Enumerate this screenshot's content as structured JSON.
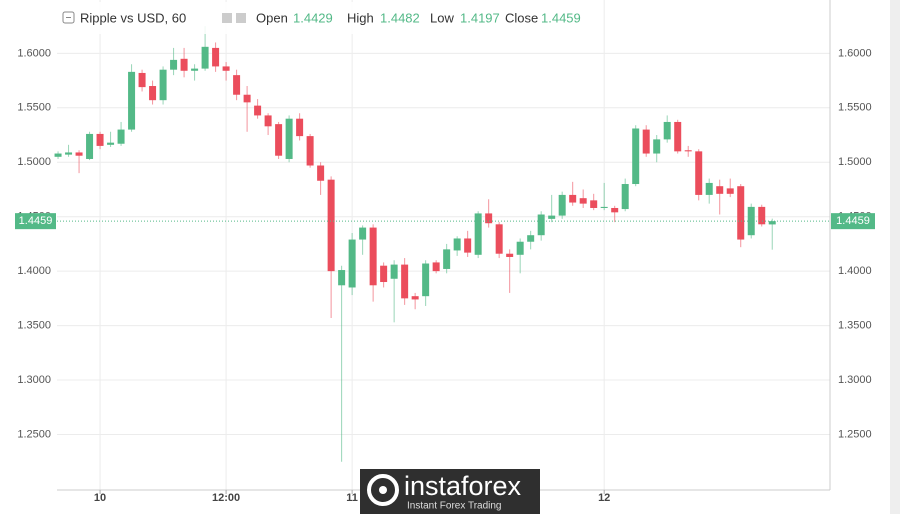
{
  "chart_data": {
    "type": "candlestick",
    "title": "Ripple vs USD, 60",
    "ohlc_legend": [
      {
        "label": "Open",
        "value": 1.4429
      },
      {
        "label": "High",
        "value": 1.4482
      },
      {
        "label": "Low",
        "value": 1.4197
      },
      {
        "label": "Close",
        "value": 1.4459
      }
    ],
    "last_price": 1.4459,
    "up_color": "#53b987",
    "down_color": "#eb4d5c",
    "x": [
      -4,
      -3,
      -2,
      -1,
      0,
      1,
      2,
      3,
      4,
      5,
      6,
      7,
      8,
      9,
      10,
      11,
      12,
      13,
      14,
      15,
      16,
      17,
      18,
      19,
      20,
      21,
      22,
      23,
      24,
      25,
      26,
      27,
      28,
      29,
      30,
      31,
      32,
      33,
      34,
      35,
      36,
      37,
      38,
      39,
      40,
      41,
      42,
      43,
      44,
      45,
      46,
      47,
      48,
      49,
      50,
      51,
      52,
      53,
      54,
      55,
      56,
      57,
      58,
      59,
      60,
      61,
      62,
      63,
      64
    ],
    "open": [
      1.505,
      1.507,
      1.509,
      1.503,
      1.526,
      1.516,
      1.517,
      1.53,
      1.582,
      1.57,
      1.557,
      1.585,
      1.595,
      1.584,
      1.586,
      1.605,
      1.588,
      1.58,
      1.562,
      1.552,
      1.543,
      1.535,
      1.503,
      1.54,
      1.524,
      1.497,
      1.484,
      1.387,
      1.385,
      1.429,
      1.44,
      1.405,
      1.393,
      1.406,
      1.377,
      1.377,
      1.408,
      1.402,
      1.419,
      1.43,
      1.415,
      1.453,
      1.443,
      1.416,
      1.415,
      1.427,
      1.433,
      1.448,
      1.451,
      1.47,
      1.467,
      1.465,
      1.458,
      1.458,
      1.457,
      1.48,
      1.53,
      1.508,
      1.521,
      1.537,
      1.511,
      1.51,
      1.47,
      1.478,
      1.476,
      1.478,
      1.433,
      1.459,
      1.4429
    ],
    "high": [
      1.51,
      1.516,
      1.511,
      1.528,
      1.528,
      1.528,
      1.537,
      1.59,
      1.585,
      1.575,
      1.588,
      1.605,
      1.605,
      1.59,
      1.625,
      1.61,
      1.592,
      1.585,
      1.57,
      1.558,
      1.545,
      1.537,
      1.543,
      1.545,
      1.526,
      1.5,
      1.487,
      1.405,
      1.435,
      1.442,
      1.443,
      1.408,
      1.41,
      1.412,
      1.38,
      1.41,
      1.41,
      1.425,
      1.432,
      1.437,
      1.455,
      1.466,
      1.445,
      1.42,
      1.43,
      1.437,
      1.455,
      1.47,
      1.473,
      1.482,
      1.475,
      1.471,
      1.481,
      1.46,
      1.485,
      1.534,
      1.534,
      1.525,
      1.543,
      1.539,
      1.515,
      1.512,
      1.485,
      1.484,
      1.485,
      1.48,
      1.462,
      1.461,
      1.4482
    ],
    "low": [
      1.503,
      1.505,
      1.49,
      1.502,
      1.512,
      1.514,
      1.515,
      1.528,
      1.565,
      1.553,
      1.553,
      1.58,
      1.578,
      1.575,
      1.584,
      1.583,
      1.575,
      1.557,
      1.528,
      1.54,
      1.525,
      1.503,
      1.5,
      1.52,
      1.495,
      1.47,
      1.357,
      1.225,
      1.378,
      1.415,
      1.372,
      1.385,
      1.353,
      1.369,
      1.365,
      1.368,
      1.398,
      1.398,
      1.414,
      1.413,
      1.412,
      1.44,
      1.412,
      1.38,
      1.398,
      1.42,
      1.428,
      1.445,
      1.448,
      1.46,
      1.458,
      1.456,
      1.456,
      1.445,
      1.455,
      1.478,
      1.505,
      1.5,
      1.518,
      1.508,
      1.505,
      1.465,
      1.462,
      1.452,
      1.468,
      1.422,
      1.43,
      1.441,
      1.4197
    ],
    "close": [
      1.508,
      1.509,
      1.506,
      1.526,
      1.515,
      1.518,
      1.53,
      1.583,
      1.569,
      1.557,
      1.585,
      1.594,
      1.584,
      1.586,
      1.606,
      1.588,
      1.584,
      1.562,
      1.555,
      1.543,
      1.533,
      1.506,
      1.54,
      1.524,
      1.497,
      1.483,
      1.4,
      1.401,
      1.429,
      1.44,
      1.387,
      1.39,
      1.406,
      1.375,
      1.374,
      1.407,
      1.4,
      1.42,
      1.43,
      1.417,
      1.453,
      1.444,
      1.416,
      1.413,
      1.427,
      1.433,
      1.452,
      1.451,
      1.47,
      1.463,
      1.462,
      1.458,
      1.459,
      1.454,
      1.48,
      1.531,
      1.508,
      1.521,
      1.537,
      1.51,
      1.51,
      1.47,
      1.481,
      1.471,
      1.471,
      1.429,
      1.459,
      1.443,
      1.4459
    ],
    "xlim": [
      -4.1,
      69.5
    ],
    "xticks": [
      {
        "value": 0,
        "label": "10"
      },
      {
        "value": 12,
        "label": "12:00"
      },
      {
        "value": 24,
        "label": "11"
      },
      {
        "value": 48,
        "label": "12"
      }
    ],
    "ylim": [
      1.199,
      1.649
    ],
    "yticks": [
      {
        "value": 1.25,
        "label": "1.2500"
      },
      {
        "value": 1.3,
        "label": "1.3000"
      },
      {
        "value": 1.35,
        "label": "1.3500"
      },
      {
        "value": 1.4,
        "label": "1.4000"
      },
      {
        "value": 1.45,
        "label": "1.4500"
      },
      {
        "value": 1.5,
        "label": "1.5000"
      },
      {
        "value": 1.55,
        "label": "1.5500"
      },
      {
        "value": 1.6,
        "label": "1.6000"
      }
    ],
    "grid": true,
    "watermark": {
      "brand": "instaforex",
      "tagline": "Instant Forex Trading"
    }
  }
}
